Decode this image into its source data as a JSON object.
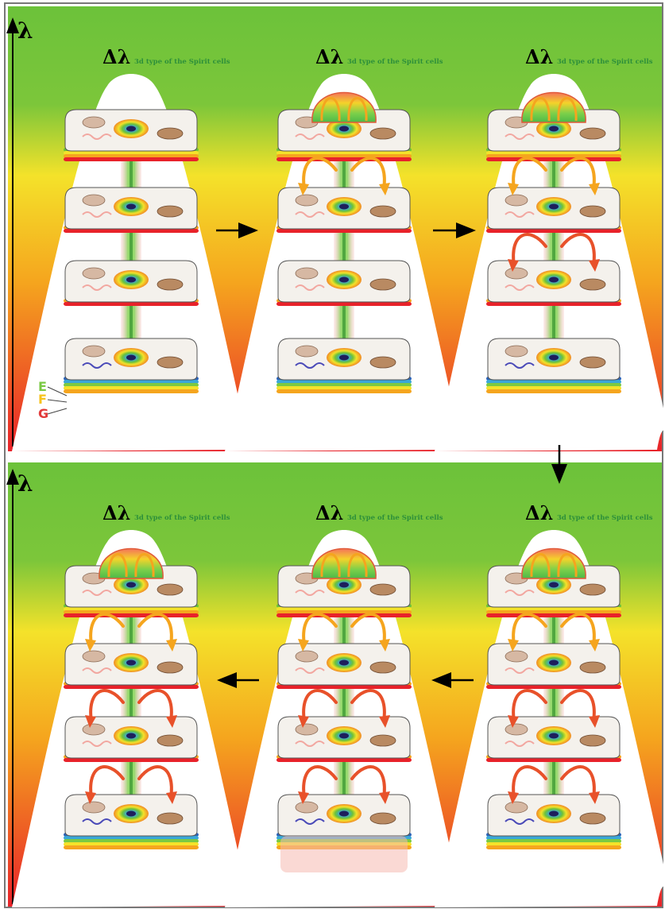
{
  "axis_symbol": "λ",
  "delta_symbol": "Δλ",
  "caption": "3d type of the Spirit cells",
  "layer_labels": [
    "E",
    "F",
    "G"
  ],
  "panels": [
    {
      "id": "1",
      "stage": 1
    },
    {
      "id": "2",
      "stage": 2
    },
    {
      "id": "3",
      "stage": 3
    },
    {
      "id": "4",
      "stage": 4
    },
    {
      "id": "5",
      "stage": 5
    },
    {
      "id": "6",
      "stage": 6
    }
  ],
  "flow_arrows": [
    "right",
    "right",
    "down",
    "left",
    "left"
  ],
  "colors": {
    "top_green": "#6cc23a",
    "mid_yellow": "#f4e22a",
    "mid_orange": "#f5a51e",
    "bottom_red": "#e8222a",
    "text_green": "#2d8f3a",
    "layer_E": "#7ac943",
    "layer_F": "#f7c31c",
    "layer_G": "#e23a3a"
  }
}
